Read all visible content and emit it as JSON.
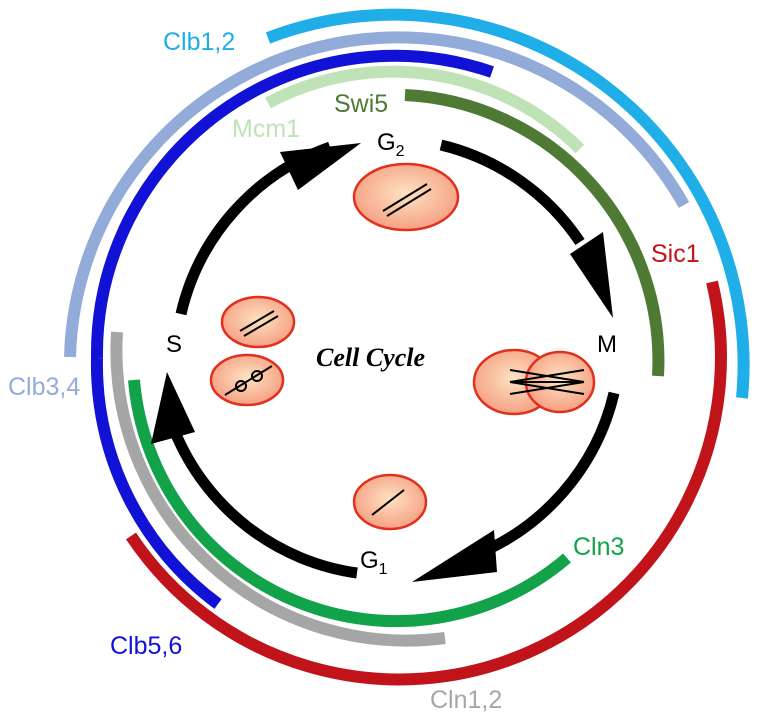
{
  "title": "Cell Cycle",
  "phases": {
    "g2": {
      "base": "G",
      "sub": "2"
    },
    "m": {
      "label": "M"
    },
    "g1": {
      "base": "G",
      "sub": "1"
    },
    "s": {
      "label": "S"
    }
  },
  "regulators": [
    {
      "id": "clb12",
      "label": "Clb1,2",
      "color": "#20aee8"
    },
    {
      "id": "clb34",
      "label": "Clb3,4",
      "color": "#93abd9"
    },
    {
      "id": "mcm1",
      "label": "Mcm1",
      "color": "#bfe2b6"
    },
    {
      "id": "swi5",
      "label": "Swi5",
      "color": "#4e7a34"
    },
    {
      "id": "sic1",
      "label": "Sic1",
      "color": "#c0131a"
    },
    {
      "id": "cln3",
      "label": "Cln3",
      "color": "#12a34a"
    },
    {
      "id": "cln12",
      "label": "Cln1,2",
      "color": "#a6a6a6"
    },
    {
      "id": "clb56",
      "label": "Clb5,6",
      "color": "#1212d6"
    }
  ],
  "colors": {
    "cycle_arrow": "#000000",
    "cell_fill": "#f7a98c",
    "cell_stroke": "#e0301e"
  }
}
